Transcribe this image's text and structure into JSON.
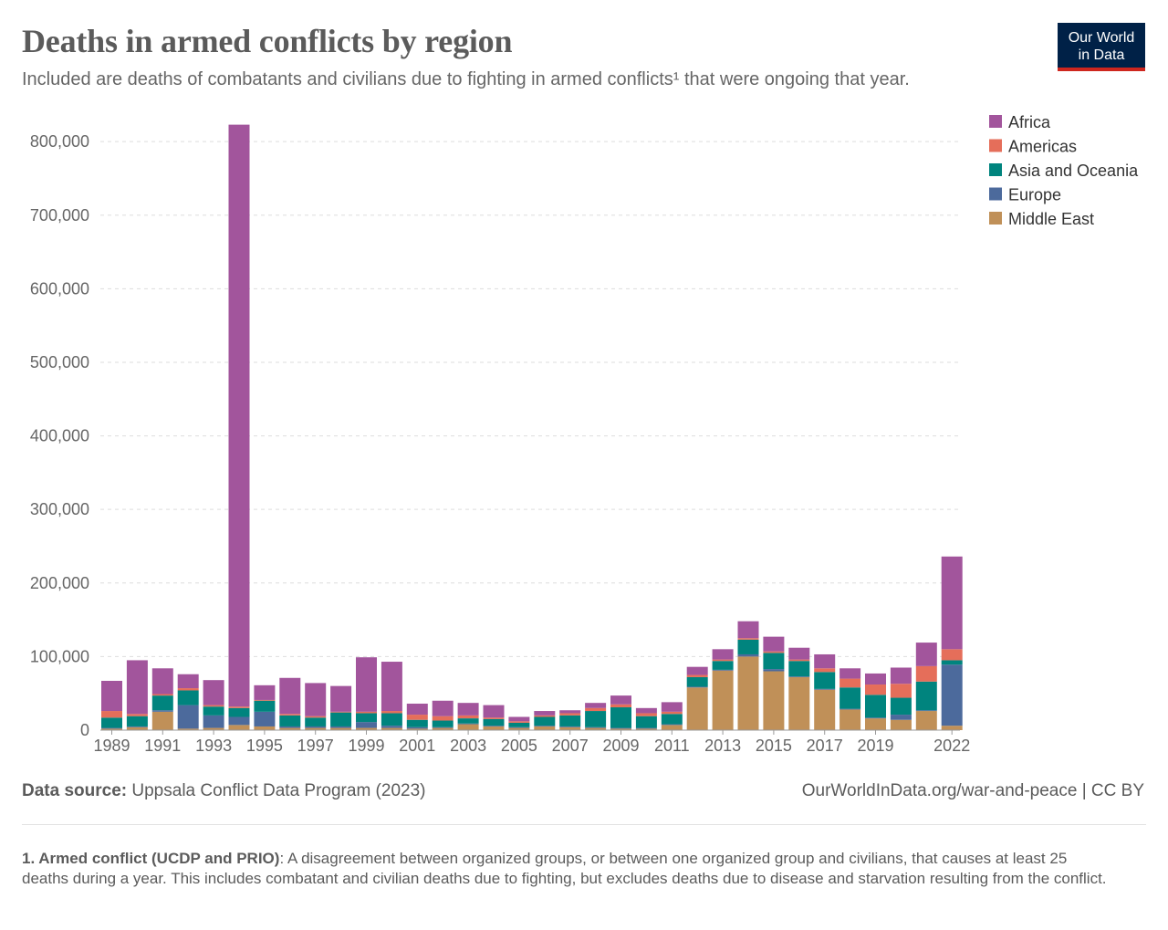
{
  "title": "Deaths in armed conflicts by region",
  "subtitle": "Included are deaths of combatants and civilians due to fighting in armed conflicts¹ that were ongoing that year.",
  "logo": {
    "line1": "Our World",
    "line2": "in Data"
  },
  "source": {
    "label": "Data source:",
    "text": "Uppsala Conflict Data Program (2023)"
  },
  "license": "OurWorldInData.org/war-and-peace | CC BY",
  "footnote": {
    "term": "1. Armed conflict (UCDP and PRIO)",
    "text": ": A disagreement between organized groups, or between one organized group and civilians, that causes at least 25 deaths during a year. This includes combatant and civilian deaths due to fighting, but excludes deaths due to disease and starvation resulting from the conflict."
  },
  "colors": {
    "Africa": "#a2559c",
    "Americas": "#e56e5a",
    "Asia and Oceania": "#00847e",
    "Europe": "#4c6a9c",
    "Middle East": "#c09058",
    "grid": "#dddddd",
    "axis": "#999999"
  },
  "chart_data": {
    "type": "bar",
    "stacked": true,
    "title": "Deaths in armed conflicts by region",
    "xlabel": "",
    "ylabel": "",
    "ylim": [
      0,
      825000
    ],
    "yticks": [
      0,
      100000,
      200000,
      300000,
      400000,
      500000,
      600000,
      700000,
      800000
    ],
    "ytick_labels": [
      "0",
      "100,000",
      "200,000",
      "300,000",
      "400,000",
      "500,000",
      "600,000",
      "700,000",
      "800,000"
    ],
    "xtick_labels": [
      "1989",
      "1991",
      "1993",
      "1995",
      "1997",
      "1999",
      "2001",
      "2003",
      "2005",
      "2007",
      "2009",
      "2011",
      "2013",
      "2015",
      "2017",
      "2019",
      "2022"
    ],
    "grid": true,
    "legend_position": "right",
    "categories": [
      "1989",
      "1990",
      "1991",
      "1992",
      "1993",
      "1994",
      "1995",
      "1996",
      "1997",
      "1998",
      "1999",
      "2000",
      "2001",
      "2002",
      "2003",
      "2004",
      "2005",
      "2006",
      "2007",
      "2008",
      "2009",
      "2010",
      "2011",
      "2012",
      "2013",
      "2014",
      "2015",
      "2016",
      "2017",
      "2018",
      "2019",
      "2020",
      "2021",
      "2022"
    ],
    "series": [
      {
        "name": "Middle East",
        "values": [
          2000,
          4000,
          25000,
          2000,
          3000,
          7000,
          5000,
          3000,
          3000,
          3000,
          3000,
          3000,
          2000,
          3000,
          8000,
          5000,
          3000,
          5000,
          4000,
          3000,
          2000,
          2000,
          7000,
          58000,
          81000,
          100000,
          80000,
          72000,
          55000,
          28000,
          16000,
          14000,
          26000,
          6000
        ]
      },
      {
        "name": "Europe",
        "values": [
          1000,
          1000,
          2000,
          32000,
          17000,
          11000,
          20000,
          2000,
          2000,
          2000,
          8000,
          3000,
          2000,
          1000,
          1000,
          1000,
          1000,
          1000,
          1000,
          1000,
          1000,
          1000,
          1000,
          1000,
          1000,
          3000,
          3000,
          1000,
          1000,
          1000,
          1000,
          7000,
          1000,
          83000
        ]
      },
      {
        "name": "Asia and Oceania",
        "values": [
          14000,
          14000,
          20000,
          20000,
          12000,
          12000,
          15000,
          15000,
          12000,
          19000,
          12000,
          17000,
          10000,
          9000,
          7000,
          9000,
          6000,
          12000,
          15000,
          22000,
          28000,
          16000,
          14000,
          13000,
          12000,
          20000,
          22000,
          21000,
          23000,
          29000,
          31000,
          23000,
          39000,
          6000
        ]
      },
      {
        "name": "Americas",
        "values": [
          9000,
          3000,
          2000,
          3000,
          2000,
          2000,
          1000,
          2000,
          2000,
          1000,
          2000,
          3000,
          7000,
          6000,
          4000,
          2000,
          2000,
          2000,
          3000,
          4000,
          4000,
          4000,
          3000,
          3000,
          2000,
          2000,
          2000,
          2000,
          5000,
          12000,
          14000,
          19000,
          21000,
          15000
        ]
      },
      {
        "name": "Africa",
        "values": [
          41000,
          73000,
          35000,
          19000,
          34000,
          791000,
          20000,
          49000,
          45000,
          35000,
          74000,
          67000,
          15000,
          21000,
          17000,
          17000,
          6000,
          6000,
          4000,
          7000,
          12000,
          7000,
          13000,
          11000,
          14000,
          23000,
          20000,
          16000,
          19000,
          14000,
          15000,
          22000,
          32000,
          126000
        ]
      }
    ],
    "legend_order": [
      "Africa",
      "Americas",
      "Asia and Oceania",
      "Europe",
      "Middle East"
    ]
  }
}
